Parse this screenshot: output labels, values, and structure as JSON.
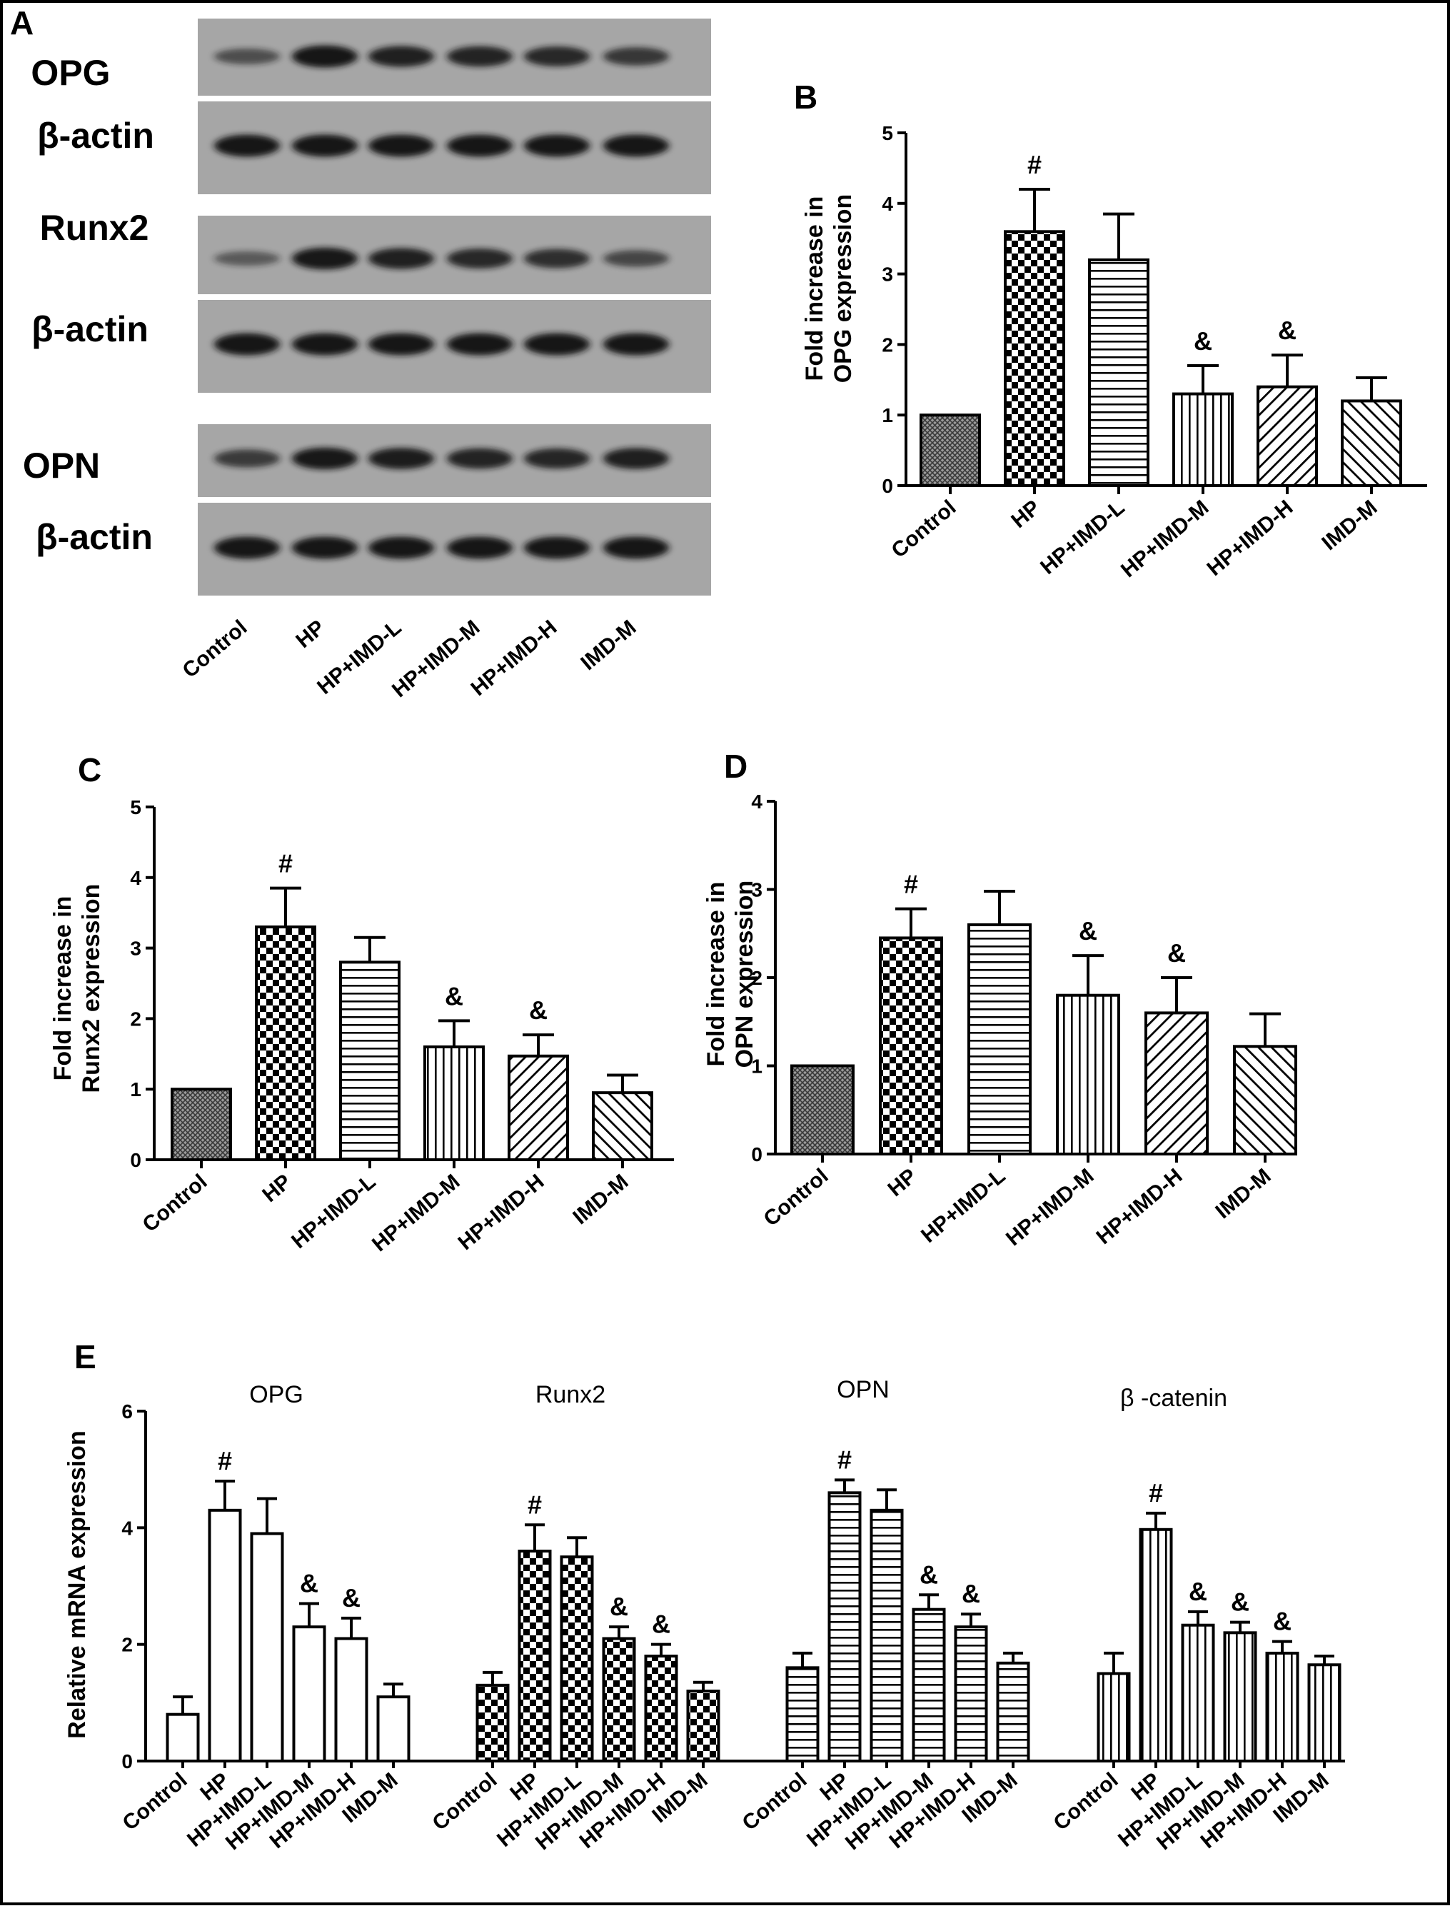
{
  "colors": {
    "ink": "#000000",
    "blot_bg": "#a6a6a6",
    "band": "#141414",
    "bar_fill": "#ffffff"
  },
  "blot": {
    "letter": "A",
    "labels": [
      "OPG",
      "β-actin",
      "Runx2",
      "β-actin",
      "OPN",
      "β-actin"
    ],
    "lanes": [
      "Control",
      "HP",
      "HP+IMD-L",
      "HP+IMD-M",
      "HP+IMD-H",
      "IMD-M"
    ],
    "band_intensity": [
      [
        0.45,
        0.95,
        0.85,
        0.82,
        0.78,
        0.65
      ],
      [
        0.95,
        0.95,
        0.95,
        0.95,
        0.95,
        0.95
      ],
      [
        0.35,
        0.92,
        0.85,
        0.78,
        0.72,
        0.52
      ],
      [
        0.95,
        0.95,
        0.95,
        0.95,
        0.95,
        0.95
      ],
      [
        0.62,
        0.92,
        0.88,
        0.82,
        0.8,
        0.86
      ],
      [
        0.95,
        0.95,
        0.95,
        0.95,
        0.95,
        0.95
      ]
    ]
  },
  "chart_data": [
    {
      "panel": "B",
      "type": "bar",
      "ylabel": [
        "Fold increase in",
        "OPG expression"
      ],
      "ylim": [
        0,
        5
      ],
      "yticks": [
        "0",
        "1",
        "2",
        "3",
        "4",
        "5"
      ],
      "categories": [
        "Control",
        "HP",
        "HP+IMD-L",
        "HP+IMD-M",
        "HP+IMD-H",
        "IMD-M"
      ],
      "values": [
        1.0,
        3.6,
        3.2,
        1.3,
        1.4,
        1.2
      ],
      "errors": [
        0.0,
        0.6,
        0.65,
        0.4,
        0.45,
        0.33
      ],
      "annotations": [
        "",
        "#",
        "",
        "&",
        "&",
        ""
      ],
      "patterns": [
        "grid",
        "checker",
        "hlines",
        "vlines",
        "diag",
        "diagrev"
      ]
    },
    {
      "panel": "C",
      "type": "bar",
      "ylabel": [
        "Fold increase in",
        "Runx2 expression"
      ],
      "ylim": [
        0,
        5
      ],
      "yticks": [
        "0",
        "1",
        "2",
        "3",
        "4",
        "5"
      ],
      "categories": [
        "Control",
        "HP",
        "HP+IMD-L",
        "HP+IMD-M",
        "HP+IMD-H",
        "IMD-M"
      ],
      "values": [
        1.0,
        3.3,
        2.8,
        1.6,
        1.47,
        0.95
      ],
      "errors": [
        0.0,
        0.55,
        0.35,
        0.37,
        0.3,
        0.25
      ],
      "annotations": [
        "",
        "#",
        "",
        "&",
        "&",
        ""
      ],
      "patterns": [
        "grid",
        "checker",
        "hlines",
        "vlines",
        "diag",
        "diagrev"
      ]
    },
    {
      "panel": "D",
      "type": "bar",
      "ylabel": [
        "Fold increase in",
        "OPN expression"
      ],
      "ylim": [
        0,
        4
      ],
      "yticks": [
        "0",
        "1",
        "2",
        "3",
        "4"
      ],
      "categories": [
        "Control",
        "HP",
        "HP+IMD-L",
        "HP+IMD-M",
        "HP+IMD-H",
        "IMD-M"
      ],
      "values": [
        1.0,
        2.45,
        2.6,
        1.8,
        1.6,
        1.22
      ],
      "errors": [
        0.0,
        0.33,
        0.38,
        0.45,
        0.4,
        0.37
      ],
      "annotations": [
        "",
        "#",
        "",
        "&",
        "&",
        ""
      ],
      "patterns": [
        "grid",
        "checker",
        "hlines",
        "vlines",
        "diag",
        "diagrev"
      ]
    },
    {
      "panel": "E",
      "type": "bar",
      "ylabel": "Relative mRNA expression",
      "ylim": [
        0,
        6
      ],
      "yticks": [
        "0",
        "2",
        "4",
        "6"
      ],
      "groups": [
        {
          "title": "OPG",
          "pattern": "none",
          "categories": [
            "Control",
            "HP",
            "HP+IMD-L",
            "HP+IMD-M",
            "HP+IMD-H",
            "IMD-M"
          ],
          "values": [
            0.8,
            4.3,
            3.9,
            2.3,
            2.1,
            1.1
          ],
          "errors": [
            0.3,
            0.5,
            0.6,
            0.4,
            0.35,
            0.22
          ],
          "annotations": [
            "",
            "#",
            "",
            "&",
            "&",
            ""
          ]
        },
        {
          "title": "Runx2",
          "pattern": "checker",
          "categories": [
            "Control",
            "HP",
            "HP+IMD-L",
            "HP+IMD-M",
            "HP+IMD-H",
            "IMD-M"
          ],
          "values": [
            1.3,
            3.6,
            3.5,
            2.1,
            1.8,
            1.2
          ],
          "errors": [
            0.22,
            0.45,
            0.33,
            0.2,
            0.2,
            0.15
          ],
          "annotations": [
            "",
            "#",
            "",
            "&",
            "&",
            ""
          ]
        },
        {
          "title": "OPN",
          "pattern": "hlines",
          "categories": [
            "Control",
            "HP",
            "HP+IMD-L",
            "HP+IMD-M",
            "HP+IMD-H",
            "IMD-M"
          ],
          "values": [
            1.6,
            4.6,
            4.3,
            2.6,
            2.3,
            1.68
          ],
          "errors": [
            0.25,
            0.22,
            0.35,
            0.25,
            0.22,
            0.17
          ],
          "annotations": [
            "",
            "#",
            "",
            "&",
            "&",
            ""
          ]
        },
        {
          "title": "β -catenin",
          "pattern": "vlines",
          "categories": [
            "Control",
            "HP",
            "HP+IMD-L",
            "HP+IMD-M",
            "HP+IMD-H",
            "IMD-M"
          ],
          "values": [
            1.5,
            3.97,
            2.33,
            2.2,
            1.85,
            1.65
          ],
          "errors": [
            0.35,
            0.28,
            0.23,
            0.18,
            0.2,
            0.15
          ],
          "annotations": [
            "",
            "#",
            "&",
            "&",
            "&",
            ""
          ]
        }
      ]
    }
  ]
}
